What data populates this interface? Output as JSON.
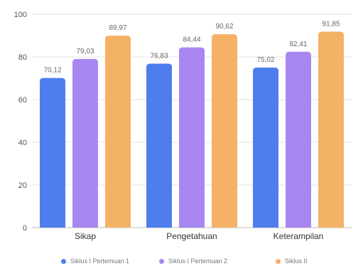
{
  "chart_data": {
    "type": "bar",
    "categories": [
      "Sikap",
      "Pengetahuan",
      "Keterampilan"
    ],
    "series": [
      {
        "name": "Siklus I Pertemuan 1",
        "values": [
          70.12,
          76.83,
          75.02
        ],
        "labels": [
          "70,12",
          "76,83",
          "75,02"
        ],
        "color": "#4e7eed"
      },
      {
        "name": "Siklus I Pertemuan 2",
        "values": [
          79.03,
          84.44,
          82.41
        ],
        "labels": [
          "79,03",
          "84,44",
          "82,41"
        ],
        "color": "#a987f1"
      },
      {
        "name": "Siklus II",
        "values": [
          89.97,
          90.62,
          91.85
        ],
        "labels": [
          "89,97",
          "90,62",
          "91,85"
        ],
        "color": "#f4b266"
      }
    ],
    "ylim": [
      0,
      100
    ],
    "yticks": [
      0,
      20,
      40,
      60,
      80,
      100
    ],
    "grid": true,
    "legend_position": "bottom",
    "xlabel": "",
    "ylabel": "",
    "title": ""
  }
}
